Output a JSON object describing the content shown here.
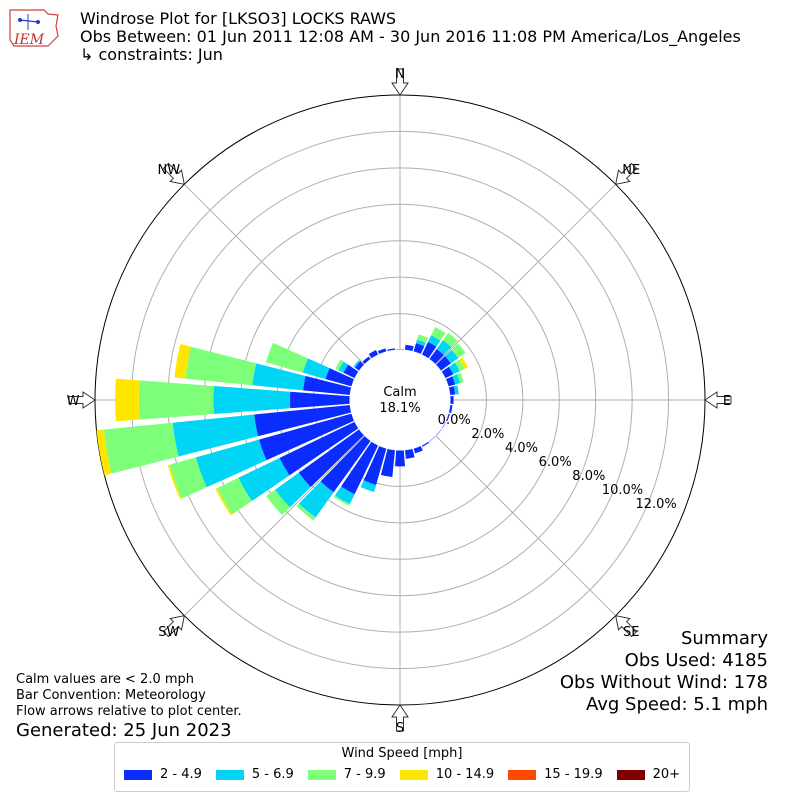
{
  "header": {
    "title": "Windrose Plot for [LKSO3] LOCKS RAWS",
    "subtitle": "Obs Between: 01 Jun 2011 12:08 AM - 30 Jun 2016 11:08 PM America/Los_Angeles",
    "constraints": "↳ constraints: Jun",
    "logo_text": "IEM"
  },
  "notes": {
    "line1": "Calm values are < 2.0 mph",
    "line2": "Bar Convention: Meteorology",
    "line3": "Flow arrows relative to plot center.",
    "generated": "Generated: 25 Jun 2023"
  },
  "summary": {
    "heading": "Summary",
    "obs_used": "Obs Used: 4185",
    "obs_without_wind": "Obs Without Wind: 178",
    "avg_speed": "Avg Speed: 5.1 mph"
  },
  "legend": {
    "title": "Wind Speed [mph]",
    "items": [
      {
        "label": "2 - 4.9",
        "color": "#0a2cff"
      },
      {
        "label": "5 - 6.9",
        "color": "#00d5f5"
      },
      {
        "label": "7 - 9.9",
        "color": "#7dff7a"
      },
      {
        "label": "10 - 14.9",
        "color": "#ffe600"
      },
      {
        "label": "15 - 19.9",
        "color": "#ff4a00"
      },
      {
        "label": "20+",
        "color": "#7f0000"
      }
    ]
  },
  "chart_data": {
    "type": "windrose",
    "calm_label": "Calm",
    "calm_value": "18.1%",
    "direction_labels": [
      "N",
      "NE",
      "E",
      "SE",
      "S",
      "SW",
      "W",
      "NW"
    ],
    "radial_ticks": [
      "0.0%",
      "2.0%",
      "4.0%",
      "6.0%",
      "8.0%",
      "10.0%",
      "12.0%"
    ],
    "radial_max": 14,
    "bins": [
      "2 - 4.9",
      "5 - 6.9",
      "7 - 9.9",
      "10 - 14.9",
      "15 - 19.9",
      "20+"
    ],
    "directions": [
      0,
      10,
      20,
      30,
      40,
      50,
      60,
      70,
      80,
      90,
      100,
      110,
      120,
      130,
      140,
      150,
      160,
      170,
      180,
      190,
      200,
      210,
      220,
      230,
      240,
      250,
      260,
      270,
      280,
      290,
      300,
      310,
      320,
      330,
      340,
      350
    ],
    "values": [
      [
        0.05,
        0,
        0,
        0,
        0,
        0
      ],
      [
        0.3,
        0,
        0,
        0,
        0,
        0
      ],
      [
        0.5,
        0.2,
        0.3,
        0,
        0,
        0
      ],
      [
        0.8,
        0.4,
        0.5,
        0,
        0,
        0
      ],
      [
        0.7,
        0.6,
        0.5,
        0,
        0,
        0
      ],
      [
        0.7,
        0.5,
        0.5,
        0,
        0,
        0
      ],
      [
        0.5,
        0.4,
        0.3,
        0.2,
        0,
        0
      ],
      [
        0.4,
        0.3,
        0.2,
        0,
        0,
        0
      ],
      [
        0.3,
        0.2,
        0,
        0,
        0,
        0
      ],
      [
        0.2,
        0,
        0,
        0,
        0,
        0
      ],
      [
        0.15,
        0,
        0,
        0,
        0,
        0
      ],
      [
        0.1,
        0,
        0,
        0,
        0,
        0
      ],
      [
        0.05,
        0,
        0,
        0,
        0,
        0
      ],
      [
        0.05,
        0,
        0,
        0,
        0,
        0
      ],
      [
        0.05,
        0,
        0,
        0,
        0,
        0
      ],
      [
        0.1,
        0,
        0,
        0,
        0,
        0
      ],
      [
        0.3,
        0,
        0,
        0,
        0,
        0
      ],
      [
        0.5,
        0,
        0,
        0,
        0,
        0
      ],
      [
        0.9,
        0,
        0,
        0,
        0,
        0
      ],
      [
        1.5,
        0,
        0,
        0,
        0,
        0
      ],
      [
        2.1,
        0.4,
        0,
        0,
        0,
        0
      ],
      [
        3.0,
        0.6,
        0.1,
        0,
        0,
        0
      ],
      [
        3.5,
        1.7,
        0.2,
        0,
        0,
        0
      ],
      [
        4.1,
        1.6,
        0.6,
        0,
        0,
        0
      ],
      [
        4.6,
        2.5,
        1.3,
        0.1,
        0,
        0
      ],
      [
        5.3,
        3.6,
        1.5,
        0.1,
        0,
        0
      ],
      [
        5.3,
        4.5,
        3.8,
        0.4,
        0,
        0
      ],
      [
        3.3,
        4.2,
        4.1,
        1.3,
        0,
        0
      ],
      [
        2.6,
        2.8,
        3.7,
        0.6,
        0,
        0
      ],
      [
        1.5,
        1.3,
        2.1,
        0,
        0,
        0
      ],
      [
        0.7,
        0.3,
        0.2,
        0,
        0,
        0
      ],
      [
        0.3,
        0.1,
        0,
        0,
        0,
        0
      ],
      [
        0.2,
        0,
        0,
        0,
        0,
        0
      ],
      [
        0.3,
        0,
        0,
        0,
        0,
        0
      ],
      [
        0.2,
        0,
        0,
        0,
        0,
        0
      ],
      [
        0.1,
        0,
        0,
        0,
        0,
        0
      ]
    ]
  }
}
